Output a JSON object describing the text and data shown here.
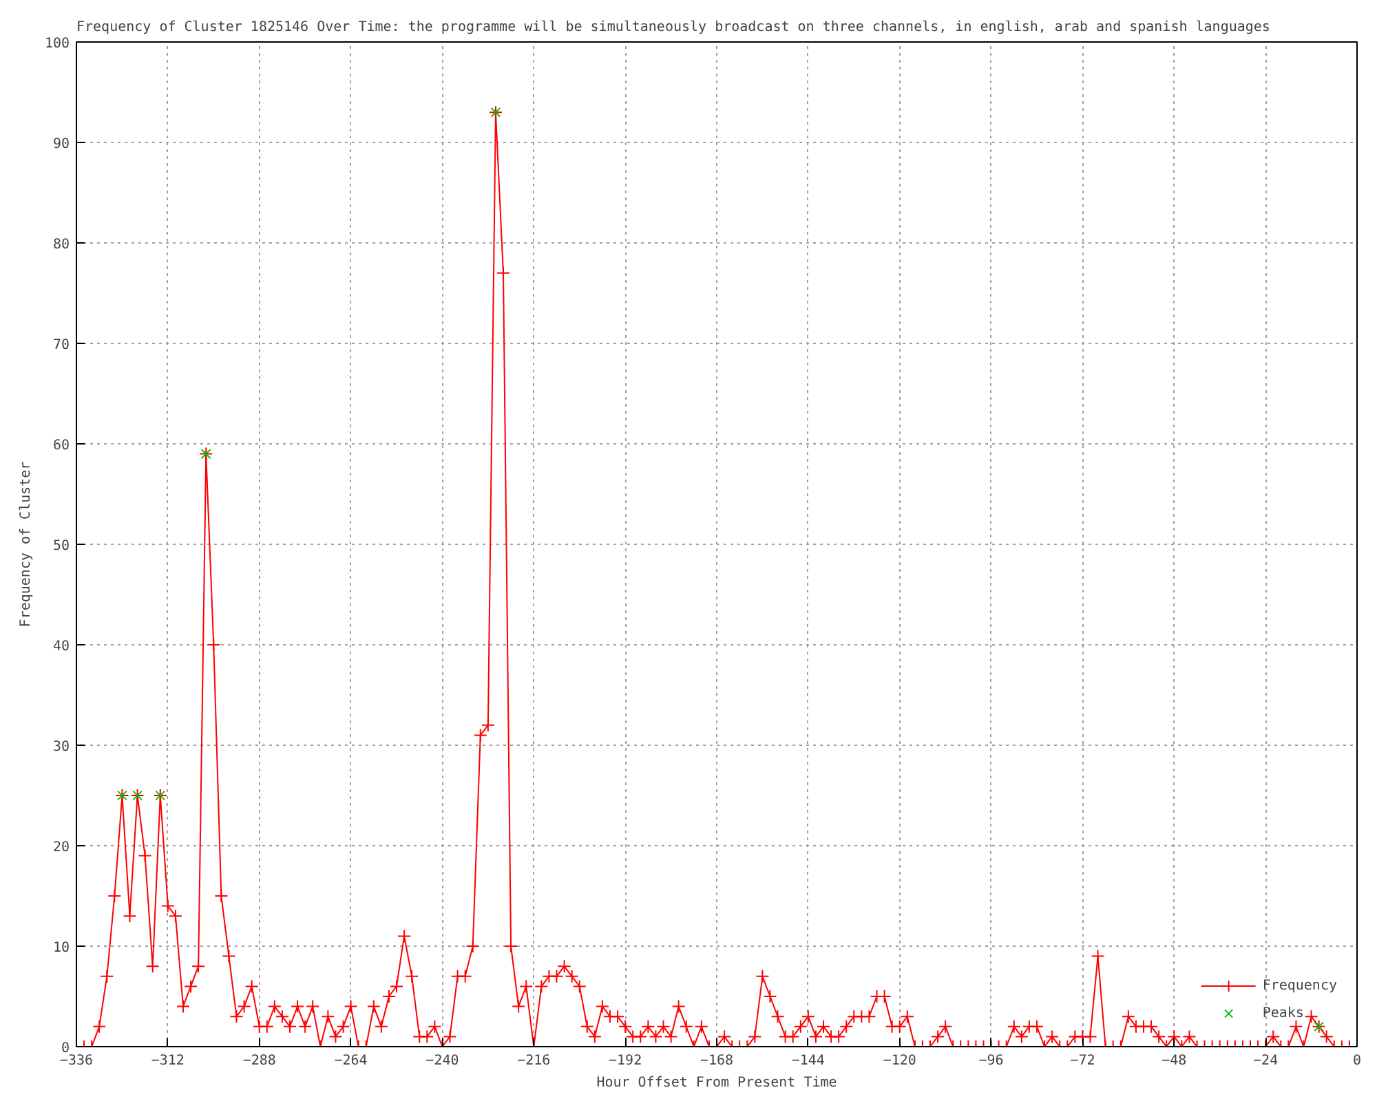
{
  "chart_data": {
    "type": "line",
    "title": "Frequency of Cluster 1825146 Over Time: the programme will be simultaneously broadcast on three channels, in english, arab and spanish languages",
    "xlabel": "Hour Offset From Present Time",
    "ylabel": "Frequency of Cluster",
    "xlim": [
      -336,
      0
    ],
    "xticks": [
      -336,
      -312,
      -288,
      -264,
      -240,
      -216,
      -192,
      -168,
      -144,
      -120,
      -96,
      -72,
      -48,
      -24,
      0
    ],
    "ylim": [
      0,
      100
    ],
    "yticks": [
      0,
      10,
      20,
      30,
      40,
      50,
      60,
      70,
      80,
      90,
      100
    ],
    "grid": true,
    "legend": "bottom right",
    "series": [
      {
        "name": "Frequency",
        "color": "#ff0000",
        "marker": "cross",
        "x": [
          -336,
          -334,
          -332,
          -330,
          -328,
          -326,
          -324,
          -322,
          -320,
          -318,
          -316,
          -314,
          -312,
          -310,
          -308,
          -306,
          -304,
          -302,
          -300,
          -298,
          -296,
          -294,
          -292,
          -290,
          -288,
          -286,
          -284,
          -282,
          -280,
          -278,
          -276,
          -274,
          -272,
          -270,
          -268,
          -266,
          -264,
          -262,
          -260,
          -258,
          -256,
          -254,
          -252,
          -250,
          -248,
          -246,
          -244,
          -242,
          -240,
          -238,
          -236,
          -234,
          -232,
          -230,
          -228,
          -226,
          -224,
          -222,
          -220,
          -218,
          -216,
          -214,
          -212,
          -210,
          -208,
          -206,
          -204,
          -202,
          -200,
          -198,
          -196,
          -194,
          -192,
          -190,
          -188,
          -186,
          -184,
          -182,
          -180,
          -178,
          -176,
          -174,
          -172,
          -170,
          -168,
          -166,
          -164,
          -162,
          -160,
          -158,
          -156,
          -154,
          -152,
          -150,
          -148,
          -146,
          -144,
          -142,
          -140,
          -138,
          -136,
          -134,
          -132,
          -130,
          -128,
          -126,
          -124,
          -122,
          -120,
          -118,
          -116,
          -114,
          -112,
          -110,
          -108,
          -106,
          -104,
          -102,
          -100,
          -98,
          -96,
          -94,
          -92,
          -90,
          -88,
          -86,
          -84,
          -82,
          -80,
          -78,
          -76,
          -74,
          -72,
          -70,
          -68,
          -66,
          -64,
          -62,
          -60,
          -58,
          -56,
          -54,
          -52,
          -50,
          -48,
          -46,
          -44,
          -42,
          -40,
          -38,
          -36,
          -34,
          -32,
          -30,
          -28,
          -26,
          -24,
          -22,
          -20,
          -18,
          -16,
          -14,
          -12,
          -10,
          -8,
          -6,
          -4,
          -2,
          0
        ],
        "values": [
          0,
          0,
          0,
          2,
          7,
          15,
          25,
          13,
          25,
          19,
          8,
          25,
          14,
          13,
          4,
          6,
          8,
          59,
          40,
          15,
          9,
          3,
          4,
          6,
          2,
          2,
          4,
          3,
          2,
          4,
          2,
          4,
          0,
          3,
          1,
          2,
          4,
          0,
          0,
          4,
          2,
          5,
          6,
          11,
          7,
          1,
          1,
          2,
          0,
          1,
          7,
          7,
          10,
          31,
          32,
          93,
          77,
          10,
          4,
          6,
          0,
          6,
          7,
          7,
          8,
          7,
          6,
          2,
          1,
          4,
          3,
          3,
          2,
          1,
          1,
          2,
          1,
          2,
          1,
          4,
          2,
          0,
          2,
          0,
          0,
          1,
          0,
          0,
          0,
          1,
          7,
          5,
          3,
          1,
          1,
          2,
          3,
          1,
          2,
          1,
          1,
          2,
          3,
          3,
          3,
          5,
          5,
          2,
          2,
          3,
          0,
          0,
          0,
          1,
          2,
          0,
          0,
          0,
          0,
          0,
          0,
          0,
          0,
          2,
          1,
          2,
          2,
          0,
          1,
          0,
          0,
          1,
          1,
          1,
          9,
          0,
          0,
          0,
          3,
          2,
          2,
          2,
          1,
          0,
          1,
          0,
          1,
          0,
          0,
          0,
          0,
          0,
          0,
          0,
          0,
          0,
          0,
          1,
          0,
          0,
          2,
          0,
          3,
          2,
          1,
          0,
          0,
          0,
          0
        ]
      },
      {
        "name": "Peaks",
        "type": "scatter",
        "color": "#00c000",
        "marker": "cross",
        "x": [
          -324,
          -320,
          -314,
          -302,
          -226,
          -10
        ],
        "values": [
          25,
          25,
          25,
          59,
          93,
          2
        ]
      }
    ]
  }
}
